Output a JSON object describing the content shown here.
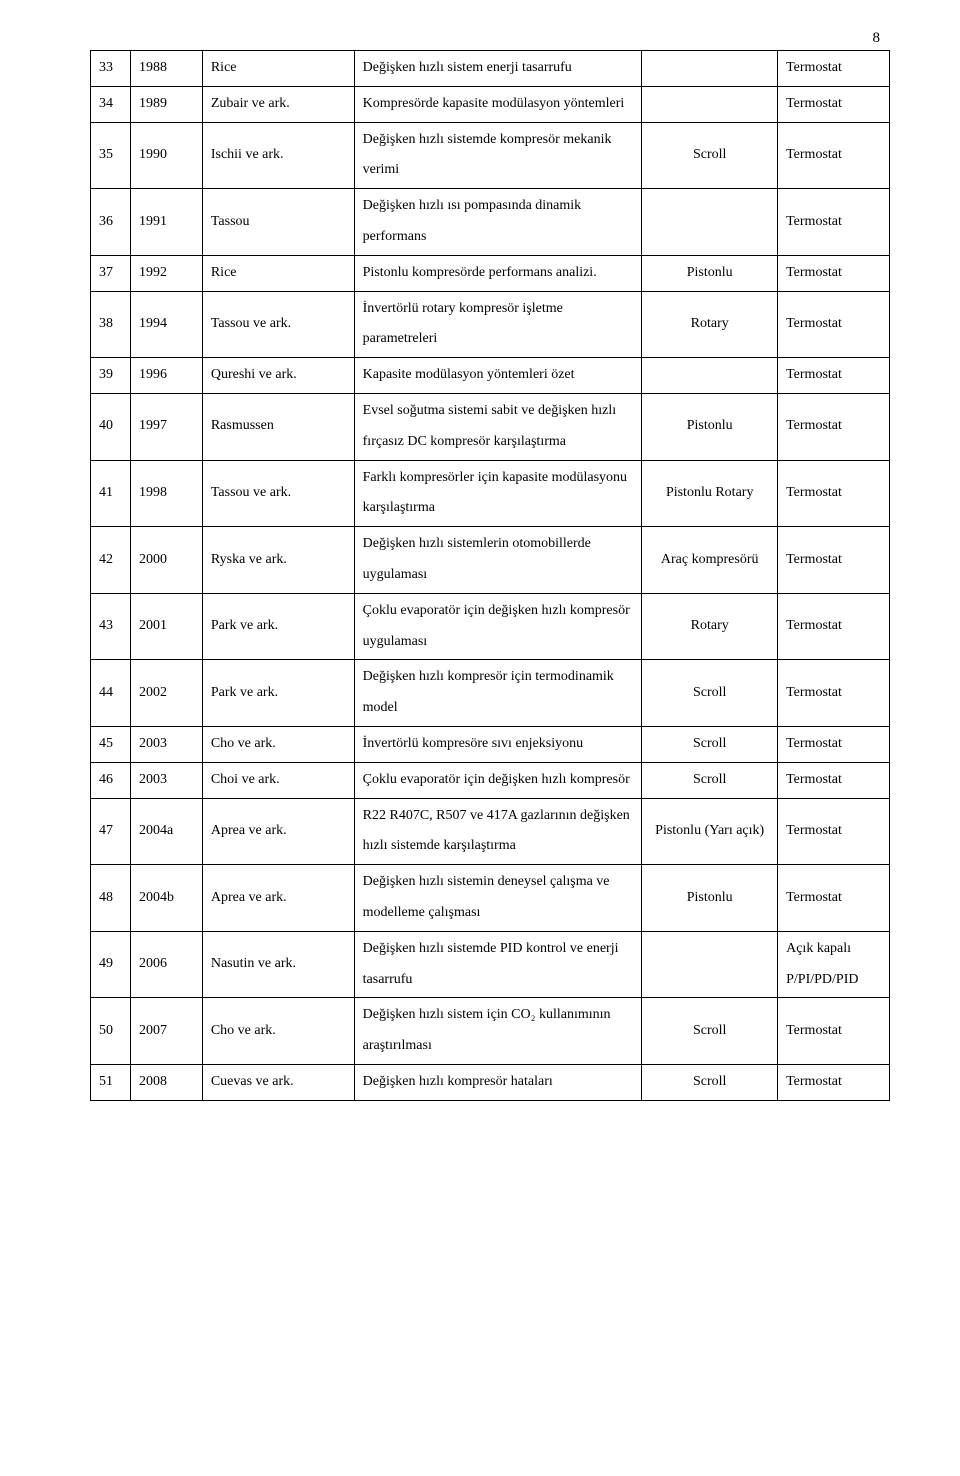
{
  "page_number": "8",
  "rows": [
    {
      "idx": "33",
      "year": "1988",
      "author": "Rice",
      "desc": "Değişken hızlı sistem enerji tasarrufu",
      "type": "",
      "ctrl": "Termostat"
    },
    {
      "idx": "34",
      "year": "1989",
      "author": "Zubair ve ark.",
      "desc": "Kompresörde kapasite modülasyon yöntemleri",
      "type": "",
      "ctrl": "Termostat"
    },
    {
      "idx": "35",
      "year": "1990",
      "author": "Ischii ve ark.",
      "desc": "Değişken hızlı sistemde kompresör mekanik verimi",
      "type": "Scroll",
      "ctrl": "Termostat"
    },
    {
      "idx": "36",
      "year": "1991",
      "author": "Tassou",
      "desc": "Değişken hızlı ısı pompasında dinamik performans",
      "type": "",
      "ctrl": "Termostat"
    },
    {
      "idx": "37",
      "year": "1992",
      "author": "Rice",
      "desc": "Pistonlu kompresörde performans analizi.",
      "type": "Pistonlu",
      "ctrl": "Termostat"
    },
    {
      "idx": "38",
      "year": "1994",
      "author": "Tassou ve ark.",
      "desc": "İnvertörlü rotary kompresör işletme parametreleri",
      "type": "Rotary",
      "ctrl": "Termostat"
    },
    {
      "idx": "39",
      "year": "1996",
      "author": "Qureshi ve ark.",
      "desc": "Kapasite modülasyon yöntemleri özet",
      "type": "",
      "ctrl": "Termostat"
    },
    {
      "idx": "40",
      "year": "1997",
      "author": "Rasmussen",
      "desc": "Evsel soğutma sistemi sabit ve değişken hızlı fırçasız DC kompresör karşılaştırma",
      "type": "Pistonlu",
      "ctrl": "Termostat"
    },
    {
      "idx": "41",
      "year": "1998",
      "author": "Tassou ve ark.",
      "desc": "Farklı kompresörler için kapasite modülasyonu karşılaştırma",
      "type": "Pistonlu Rotary",
      "ctrl": "Termostat"
    },
    {
      "idx": "42",
      "year": "2000",
      "author": "Ryska ve ark.",
      "desc": "Değişken hızlı sistemlerin otomobillerde uygulaması",
      "type": "Araç kompresörü",
      "ctrl": "Termostat"
    },
    {
      "idx": "43",
      "year": "2001",
      "author": "Park ve ark.",
      "desc": "Çoklu evaporatör için değişken hızlı kompresör uygulaması",
      "type": "Rotary",
      "ctrl": "Termostat"
    },
    {
      "idx": "44",
      "year": "2002",
      "author": "Park ve ark.",
      "desc": "Değişken hızlı kompresör için termodinamik model",
      "type": "Scroll",
      "ctrl": "Termostat"
    },
    {
      "idx": "45",
      "year": "2003",
      "author": "Cho ve ark.",
      "desc": "İnvertörlü kompresöre sıvı enjeksiyonu",
      "type": "Scroll",
      "ctrl": "Termostat"
    },
    {
      "idx": "46",
      "year": "2003",
      "author": "Choi ve ark.",
      "desc": "Çoklu evaporatör için değişken hızlı kompresör",
      "type": "Scroll",
      "ctrl": "Termostat"
    },
    {
      "idx": "47",
      "year": "2004a",
      "author": "Aprea ve ark.",
      "desc": "R22 R407C, R507 ve 417A gazlarının değişken hızlı sistemde karşılaştırma",
      "type": "Pistonlu (Yarı açık)",
      "ctrl": "Termostat"
    },
    {
      "idx": "48",
      "year": "2004b",
      "author": "Aprea  ve ark.",
      "desc": "Değişken hızlı sistemin deneysel çalışma ve modelleme çalışması",
      "type": "Pistonlu",
      "ctrl": "Termostat"
    },
    {
      "idx": "49",
      "year": "2006",
      "author": "Nasutin ve ark.",
      "desc": "Değişken hızlı sistemde PID kontrol ve enerji tasarrufu",
      "type": "",
      "ctrl": "Açık kapalı P/PI/PD/PID"
    },
    {
      "idx": "50",
      "year": "2007",
      "author": "Cho ve ark.",
      "desc": "Değişken hızlı sistem için CO₂ kullanımının araştırılması",
      "type": "Scroll",
      "ctrl": "Termostat"
    },
    {
      "idx": "51",
      "year": "2008",
      "author": "Cuevas ve ark.",
      "desc": "Değişken hızlı kompresör hataları",
      "type": "Scroll",
      "ctrl": "Termostat"
    }
  ]
}
